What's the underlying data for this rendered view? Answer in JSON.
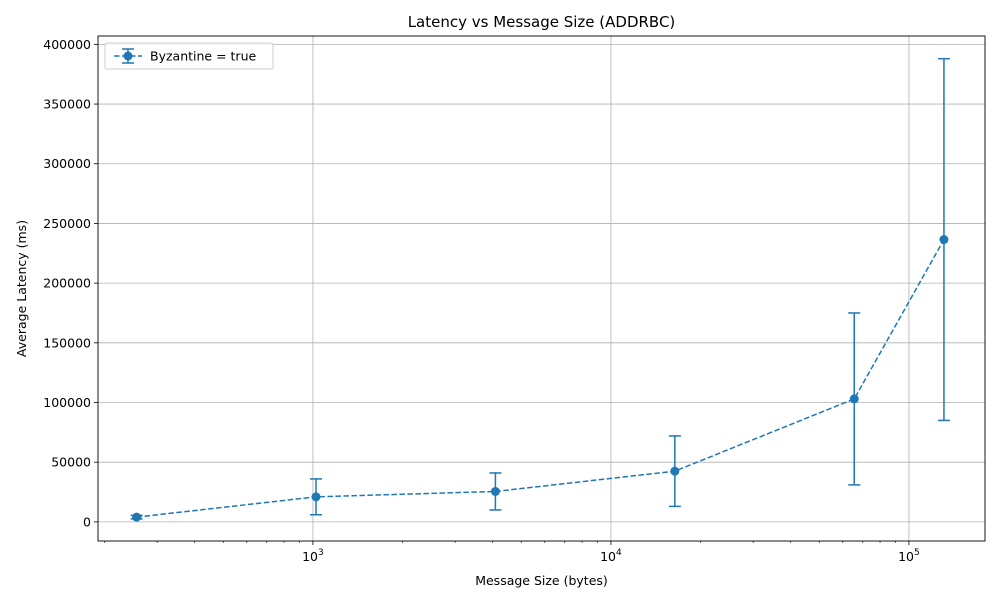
{
  "chart_data": {
    "type": "line",
    "title": "Latency vs Message Size (ADDRBC)",
    "xlabel": "Message Size (bytes)",
    "ylabel": "Average Latency (ms)",
    "x_scale": "log",
    "xlim": [
      190,
      180000
    ],
    "ylim": [
      -16000,
      407000
    ],
    "x_ticks": [
      {
        "value": 1000,
        "base": "10",
        "exp": "3"
      },
      {
        "value": 10000,
        "base": "10",
        "exp": "4"
      },
      {
        "value": 100000,
        "base": "10",
        "exp": "5"
      }
    ],
    "y_ticks": [
      0,
      50000,
      100000,
      150000,
      200000,
      250000,
      300000,
      350000,
      400000
    ],
    "grid": true,
    "legend_position": "top-left",
    "series": [
      {
        "name": "Byzantine = true",
        "color": "#1f77b4",
        "line_style": "dashed",
        "marker": "circle",
        "x": [
          256,
          1024,
          4096,
          16384,
          65536,
          131072
        ],
        "y": [
          4000,
          21000,
          25500,
          42500,
          103000,
          236500
        ],
        "yerr": [
          1500,
          15000,
          15500,
          29500,
          72000,
          151500
        ]
      }
    ]
  }
}
